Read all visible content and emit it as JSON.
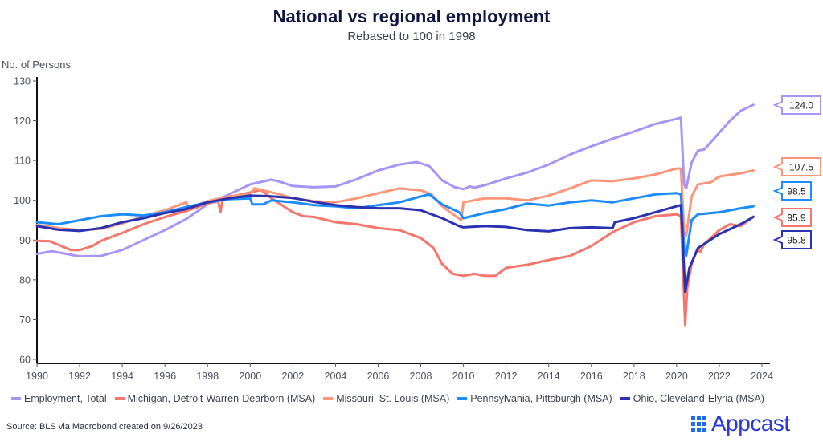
{
  "header": {
    "title": "National vs regional employment",
    "subtitle": "Rebased to 100 in 1998"
  },
  "footer": {
    "source": "Source: BLS via Macrobond created on 9/26/2023",
    "logo_text": "Appcast",
    "logo_mark": "™"
  },
  "chart_data": {
    "type": "line",
    "title": "National vs regional employment",
    "subtitle": "Rebased to 100 in 1998",
    "xlabel": "",
    "ylabel": "No. of Persons",
    "xlim": [
      1990,
      2024.4
    ],
    "ylim": [
      59,
      131
    ],
    "grid": false,
    "legend_position": "bottom",
    "x_ticks": [
      "1990",
      "1992",
      "1994",
      "1996",
      "1998",
      "2000",
      "2002",
      "2004",
      "2006",
      "2008",
      "2010",
      "2012",
      "2014",
      "2016",
      "2018",
      "2020",
      "2022",
      "2024"
    ],
    "y_ticks": [
      "60",
      "70",
      "80",
      "90",
      "100",
      "110",
      "120",
      "130"
    ],
    "series": [
      {
        "name": "Employment, Total",
        "color": "#a795f5",
        "end_label": "124.0",
        "points": [
          [
            1990,
            86.5
          ],
          [
            1990.7,
            87.2
          ],
          [
            1991.3,
            86.6
          ],
          [
            1992,
            85.9
          ],
          [
            1993,
            86.0
          ],
          [
            1994,
            87.5
          ],
          [
            1995,
            90.0
          ],
          [
            1996,
            92.5
          ],
          [
            1997,
            95.3
          ],
          [
            1998,
            99.0
          ],
          [
            1999,
            101.5
          ],
          [
            2000,
            104.0
          ],
          [
            2001,
            105.2
          ],
          [
            2001.5,
            104.5
          ],
          [
            2002,
            103.6
          ],
          [
            2003,
            103.3
          ],
          [
            2004,
            103.5
          ],
          [
            2005,
            105.3
          ],
          [
            2006,
            107.5
          ],
          [
            2007,
            109.0
          ],
          [
            2007.8,
            109.6
          ],
          [
            2008.4,
            108.6
          ],
          [
            2009,
            105.0
          ],
          [
            2009.6,
            103.3
          ],
          [
            2010,
            102.8
          ],
          [
            2010.3,
            103.5
          ],
          [
            2010.5,
            103.2
          ],
          [
            2011,
            103.8
          ],
          [
            2012,
            105.5
          ],
          [
            2013,
            107.0
          ],
          [
            2014,
            109.0
          ],
          [
            2015,
            111.5
          ],
          [
            2016,
            113.6
          ],
          [
            2017,
            115.5
          ],
          [
            2018,
            117.3
          ],
          [
            2019,
            119.2
          ],
          [
            2020,
            120.5
          ],
          [
            2020.2,
            120.8
          ],
          [
            2020.35,
            104.0
          ],
          [
            2020.45,
            103.0
          ],
          [
            2020.7,
            109.5
          ],
          [
            2021,
            112.5
          ],
          [
            2021.3,
            112.8
          ],
          [
            2022,
            117.0
          ],
          [
            2022.5,
            120.0
          ],
          [
            2023,
            122.5
          ],
          [
            2023.6,
            124.0
          ]
        ]
      },
      {
        "name": "Michigan, Detroit-Warren-Dearborn (MSA)",
        "color": "#f7766c",
        "end_label": "95.9",
        "points": [
          [
            1990,
            89.8
          ],
          [
            1990.6,
            89.7
          ],
          [
            1991,
            88.8
          ],
          [
            1991.6,
            87.5
          ],
          [
            1992,
            87.5
          ],
          [
            1992.6,
            88.5
          ],
          [
            1993,
            89.8
          ],
          [
            1994,
            91.8
          ],
          [
            1995,
            94.0
          ],
          [
            1996,
            95.8
          ],
          [
            1997,
            97.3
          ],
          [
            1998,
            99.2
          ],
          [
            1998.5,
            99.8
          ],
          [
            1998.6,
            97.0
          ],
          [
            1998.7,
            100.0
          ],
          [
            1999,
            100.8
          ],
          [
            2000,
            102.0
          ],
          [
            2000.5,
            102.6
          ],
          [
            2001,
            100.5
          ],
          [
            2002,
            97.0
          ],
          [
            2002.5,
            96.0
          ],
          [
            2003,
            95.8
          ],
          [
            2004,
            94.5
          ],
          [
            2005,
            94.0
          ],
          [
            2006,
            93.0
          ],
          [
            2007,
            92.5
          ],
          [
            2008,
            90.5
          ],
          [
            2008.6,
            88.0
          ],
          [
            2009,
            84.0
          ],
          [
            2009.5,
            81.5
          ],
          [
            2010,
            81.0
          ],
          [
            2010.5,
            81.5
          ],
          [
            2011,
            81.0
          ],
          [
            2011.5,
            81.0
          ],
          [
            2012,
            83.0
          ],
          [
            2013,
            83.8
          ],
          [
            2014,
            85.0
          ],
          [
            2015,
            86.0
          ],
          [
            2016,
            88.5
          ],
          [
            2017,
            92.0
          ],
          [
            2018,
            94.5
          ],
          [
            2019,
            96.0
          ],
          [
            2020,
            96.5
          ],
          [
            2020.2,
            96.0
          ],
          [
            2020.4,
            68.5
          ],
          [
            2020.5,
            78.0
          ],
          [
            2020.7,
            84.0
          ],
          [
            2021,
            88.0
          ],
          [
            2021.1,
            87.0
          ],
          [
            2021.3,
            89.0
          ],
          [
            2022,
            92.5
          ],
          [
            2022.5,
            94.0
          ],
          [
            2023,
            93.5
          ],
          [
            2023.6,
            95.9
          ]
        ]
      },
      {
        "name": "Missouri, St. Louis (MSA)",
        "color": "#fd9678",
        "end_label": "107.5",
        "points": [
          [
            1990,
            93.8
          ],
          [
            1991,
            93.0
          ],
          [
            1992,
            92.5
          ],
          [
            1993,
            92.8
          ],
          [
            1994,
            94.2
          ],
          [
            1995,
            96.0
          ],
          [
            1996,
            97.5
          ],
          [
            1997,
            99.5
          ],
          [
            1997.1,
            98.0
          ],
          [
            1998,
            99.8
          ],
          [
            1999,
            101.0
          ],
          [
            2000,
            101.5
          ],
          [
            2000.2,
            103.0
          ],
          [
            2001,
            102.0
          ],
          [
            2001.4,
            101.5
          ],
          [
            2002,
            100.5
          ],
          [
            2003,
            99.8
          ],
          [
            2004,
            99.5
          ],
          [
            2005,
            100.5
          ],
          [
            2006,
            101.8
          ],
          [
            2007,
            103.0
          ],
          [
            2008,
            102.5
          ],
          [
            2008.5,
            101.5
          ],
          [
            2009,
            98.5
          ],
          [
            2009.9,
            95.0
          ],
          [
            2010,
            99.5
          ],
          [
            2011,
            100.5
          ],
          [
            2012,
            100.5
          ],
          [
            2013,
            100.0
          ],
          [
            2014,
            101.2
          ],
          [
            2015,
            103.0
          ],
          [
            2016,
            105.0
          ],
          [
            2017,
            104.8
          ],
          [
            2018,
            105.5
          ],
          [
            2019,
            106.5
          ],
          [
            2020,
            108.0
          ],
          [
            2020.2,
            108.0
          ],
          [
            2020.35,
            92.0
          ],
          [
            2020.45,
            91.0
          ],
          [
            2020.7,
            101.0
          ],
          [
            2021,
            104.0
          ],
          [
            2021.6,
            104.5
          ],
          [
            2022,
            106.0
          ],
          [
            2023,
            106.8
          ],
          [
            2023.6,
            107.5
          ]
        ]
      },
      {
        "name": "Pennsylvania, Pittsburgh (MSA)",
        "color": "#1a8cff",
        "end_label": "98.5",
        "points": [
          [
            1990,
            94.5
          ],
          [
            1991,
            94.0
          ],
          [
            1992,
            95.0
          ],
          [
            1993,
            96.0
          ],
          [
            1994,
            96.5
          ],
          [
            1995,
            96.2
          ],
          [
            1996,
            97.0
          ],
          [
            1997,
            98.3
          ],
          [
            1998,
            99.5
          ],
          [
            1999,
            100.3
          ],
          [
            2000,
            100.5
          ],
          [
            2000.1,
            99.0
          ],
          [
            2000.6,
            99.0
          ],
          [
            2001,
            100.0
          ],
          [
            2002,
            99.5
          ],
          [
            2003,
            98.8
          ],
          [
            2004,
            98.5
          ],
          [
            2005,
            98.0
          ],
          [
            2006,
            98.8
          ],
          [
            2007,
            99.5
          ],
          [
            2008,
            101.0
          ],
          [
            2008.4,
            101.5
          ],
          [
            2009,
            99.0
          ],
          [
            2009.8,
            97.0
          ],
          [
            2010,
            95.5
          ],
          [
            2011,
            96.8
          ],
          [
            2012,
            97.8
          ],
          [
            2013,
            99.2
          ],
          [
            2014,
            98.7
          ],
          [
            2015,
            99.5
          ],
          [
            2016,
            100.0
          ],
          [
            2017,
            99.5
          ],
          [
            2018,
            100.5
          ],
          [
            2019,
            101.5
          ],
          [
            2020,
            101.8
          ],
          [
            2020.2,
            101.5
          ],
          [
            2020.35,
            88.0
          ],
          [
            2020.45,
            86.0
          ],
          [
            2020.7,
            95.0
          ],
          [
            2021,
            96.5
          ],
          [
            2022,
            97.0
          ],
          [
            2023,
            98.0
          ],
          [
            2023.6,
            98.5
          ]
        ]
      },
      {
        "name": "Ohio, Cleveland-Elyria (MSA)",
        "color": "#2b32b2",
        "end_label": "95.8",
        "points": [
          [
            1990,
            93.5
          ],
          [
            1991,
            92.6
          ],
          [
            1992,
            92.3
          ],
          [
            1993,
            93.0
          ],
          [
            1994,
            94.5
          ],
          [
            1995,
            95.5
          ],
          [
            1996,
            96.8
          ],
          [
            1997,
            97.8
          ],
          [
            1998,
            99.5
          ],
          [
            1999,
            100.5
          ],
          [
            2000,
            101.2
          ],
          [
            2001,
            101.0
          ],
          [
            2002,
            100.6
          ],
          [
            2003,
            99.6
          ],
          [
            2004,
            98.8
          ],
          [
            2005,
            98.3
          ],
          [
            2006,
            98.0
          ],
          [
            2007,
            98.0
          ],
          [
            2008,
            97.5
          ],
          [
            2009,
            95.5
          ],
          [
            2009.8,
            93.5
          ],
          [
            2010,
            93.2
          ],
          [
            2011,
            93.5
          ],
          [
            2012,
            93.3
          ],
          [
            2013,
            92.5
          ],
          [
            2014,
            92.2
          ],
          [
            2015,
            93.0
          ],
          [
            2016,
            93.2
          ],
          [
            2017,
            93.0
          ],
          [
            2017.1,
            94.5
          ],
          [
            2018,
            95.5
          ],
          [
            2019,
            97.0
          ],
          [
            2020,
            98.5
          ],
          [
            2020.2,
            98.8
          ],
          [
            2020.4,
            77.0
          ],
          [
            2020.6,
            83.0
          ],
          [
            2021,
            88.0
          ],
          [
            2022,
            91.5
          ],
          [
            2023,
            94.0
          ],
          [
            2023.6,
            95.8
          ]
        ]
      }
    ]
  }
}
